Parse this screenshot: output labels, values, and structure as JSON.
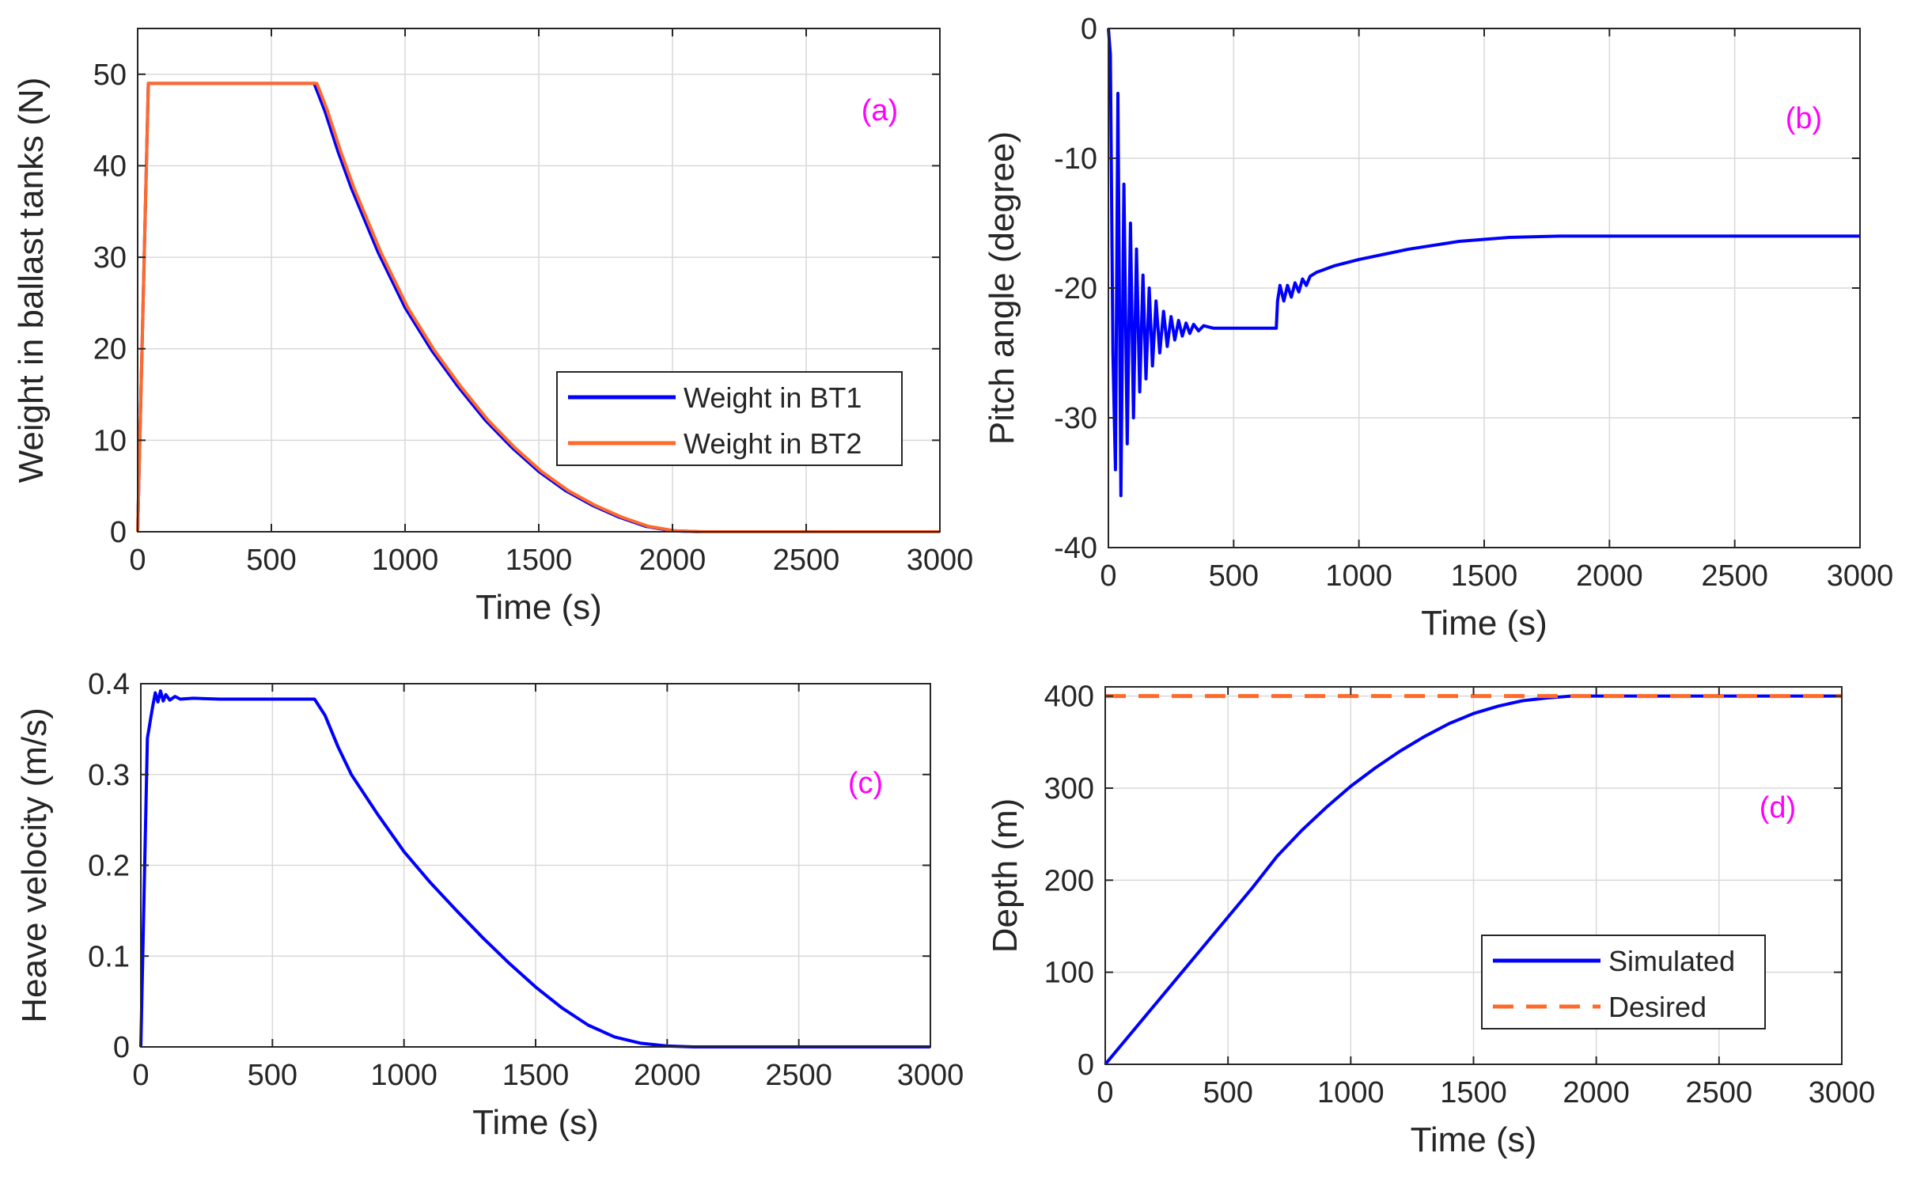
{
  "colors": {
    "blue": "#0000ff",
    "orange": "#ff6a2a",
    "magenta": "#ff00ff",
    "axis": "#262626",
    "grid": "#d9d9d9"
  },
  "chart_data": [
    {
      "id": "a",
      "type": "line",
      "panel_label": "(a)",
      "xlabel": "Time (s)",
      "ylabel": "Weight in ballast tanks (N)",
      "xlim": [
        0,
        3000
      ],
      "ylim": [
        0,
        55
      ],
      "xticks": [
        0,
        500,
        1000,
        1500,
        2000,
        2500,
        3000
      ],
      "yticks": [
        0,
        10,
        20,
        30,
        40,
        50
      ],
      "grid": true,
      "legend_position": "lower-right",
      "series": [
        {
          "name": "Weight in BT1",
          "color": "#0000ff",
          "dash": "solid",
          "x": [
            0,
            40,
            660,
            700,
            750,
            800,
            900,
            1000,
            1100,
            1200,
            1300,
            1400,
            1500,
            1600,
            1700,
            1800,
            1900,
            2000,
            2100,
            2200,
            3000
          ],
          "y": [
            0,
            49,
            49,
            46,
            41.5,
            37.5,
            30.5,
            24.5,
            19.8,
            15.8,
            12.2,
            9.2,
            6.6,
            4.5,
            2.9,
            1.6,
            0.6,
            0.1,
            0,
            0,
            0
          ]
        },
        {
          "name": "Weight in BT2",
          "color": "#ff6a2a",
          "dash": "solid",
          "x": [
            0,
            40,
            670,
            710,
            760,
            810,
            910,
            1010,
            1110,
            1210,
            1310,
            1410,
            1510,
            1610,
            1710,
            1810,
            1910,
            2010,
            2110,
            2210,
            3000
          ],
          "y": [
            0,
            49,
            49,
            46,
            41.5,
            37.5,
            30.5,
            24.5,
            19.8,
            15.8,
            12.2,
            9.2,
            6.6,
            4.5,
            2.9,
            1.6,
            0.6,
            0.1,
            0,
            0,
            0
          ]
        }
      ]
    },
    {
      "id": "b",
      "type": "line",
      "panel_label": "(b)",
      "xlabel": "Time (s)",
      "ylabel": "Pitch angle (degree)",
      "xlim": [
        0,
        3000
      ],
      "ylim": [
        -40,
        0
      ],
      "xticks": [
        0,
        500,
        1000,
        1500,
        2000,
        2500,
        3000
      ],
      "yticks": [
        0,
        -10,
        -20,
        -30,
        -40
      ],
      "grid": true,
      "series": [
        {
          "name": "Pitch angle",
          "color": "#0000ff",
          "dash": "solid",
          "x": [
            0,
            8,
            18,
            28,
            38,
            50,
            62,
            75,
            88,
            100,
            112,
            125,
            138,
            150,
            163,
            176,
            190,
            205,
            220,
            235,
            250,
            265,
            280,
            295,
            310,
            325,
            340,
            360,
            380,
            420,
            480,
            560,
            670,
            675,
            685,
            700,
            715,
            730,
            745,
            760,
            775,
            790,
            805,
            830,
            900,
            1000,
            1200,
            1400,
            1600,
            1800,
            2000,
            2500,
            3000
          ],
          "y": [
            0,
            -2,
            -25,
            -34,
            -5,
            -36,
            -12,
            -32,
            -15,
            -30,
            -17,
            -28,
            -19,
            -27,
            -20,
            -26,
            -21,
            -25,
            -21.8,
            -24.5,
            -22.2,
            -24,
            -22.5,
            -23.7,
            -22.7,
            -23.5,
            -22.8,
            -23.3,
            -22.9,
            -23.1,
            -23.1,
            -23.1,
            -23.1,
            -21,
            -19.8,
            -21,
            -19.8,
            -20.7,
            -19.6,
            -20.3,
            -19.3,
            -19.8,
            -19.1,
            -18.8,
            -18.3,
            -17.8,
            -17,
            -16.4,
            -16.1,
            -16,
            -16,
            -16,
            -16
          ]
        }
      ]
    },
    {
      "id": "c",
      "type": "line",
      "panel_label": "(c)",
      "xlabel": "Time (s)",
      "ylabel": "Heave velocity (m/s)",
      "xlim": [
        0,
        3000
      ],
      "ylim": [
        0,
        0.4
      ],
      "xticks": [
        0,
        500,
        1000,
        1500,
        2000,
        2500,
        3000
      ],
      "yticks": [
        0,
        0.1,
        0.2,
        0.3,
        0.4
      ],
      "grid": true,
      "series": [
        {
          "name": "Heave velocity",
          "color": "#0000ff",
          "dash": "solid",
          "x": [
            0,
            25,
            45,
            55,
            65,
            75,
            85,
            95,
            110,
            130,
            150,
            200,
            300,
            660,
            700,
            750,
            800,
            900,
            1000,
            1100,
            1200,
            1300,
            1400,
            1500,
            1600,
            1700,
            1800,
            1900,
            2000,
            2100,
            2200,
            3000
          ],
          "y": [
            0,
            0.34,
            0.375,
            0.39,
            0.38,
            0.392,
            0.381,
            0.388,
            0.382,
            0.386,
            0.383,
            0.384,
            0.383,
            0.383,
            0.365,
            0.33,
            0.3,
            0.256,
            0.215,
            0.181,
            0.15,
            0.12,
            0.092,
            0.066,
            0.043,
            0.024,
            0.011,
            0.004,
            0.001,
            0,
            0,
            0
          ]
        }
      ]
    },
    {
      "id": "d",
      "type": "line",
      "panel_label": "(d)",
      "xlabel": "Time (s)",
      "ylabel": "Depth (m)",
      "xlim": [
        0,
        3000
      ],
      "ylim": [
        0,
        410
      ],
      "xticks": [
        0,
        500,
        1000,
        1500,
        2000,
        2500,
        3000
      ],
      "yticks": [
        0,
        100,
        200,
        300,
        400
      ],
      "grid": true,
      "legend_position": "lower-right",
      "series": [
        {
          "name": "Simulated",
          "color": "#0000ff",
          "dash": "solid",
          "x": [
            0,
            100,
            200,
            300,
            400,
            500,
            600,
            700,
            800,
            900,
            1000,
            1100,
            1200,
            1300,
            1400,
            1500,
            1600,
            1700,
            1800,
            1900,
            2000,
            2100,
            2200,
            3000
          ],
          "y": [
            0,
            32,
            64,
            96,
            128,
            160,
            192,
            226,
            254,
            279,
            302,
            322,
            340,
            356,
            370,
            381,
            389,
            395,
            398,
            400,
            400,
            400,
            400,
            400
          ]
        },
        {
          "name": "Desired",
          "color": "#ff6a2a",
          "dash": "dashed",
          "x": [
            0,
            3000
          ],
          "y": [
            400,
            400
          ]
        }
      ]
    }
  ]
}
